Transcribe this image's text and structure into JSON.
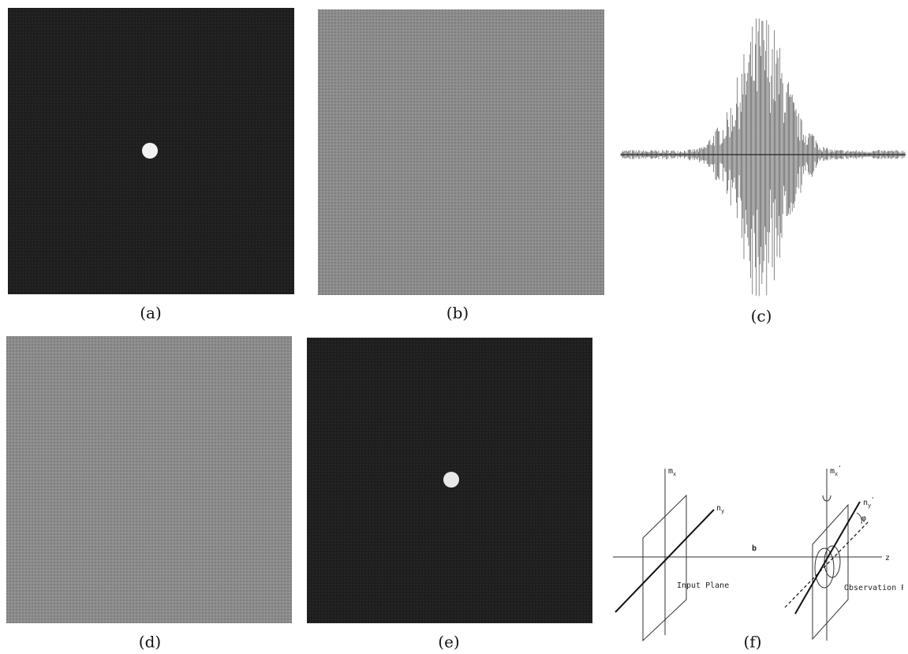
{
  "panels": [
    {
      "label": "(a)"
    },
    {
      "label": "(b)"
    },
    {
      "label": "(c)"
    },
    {
      "label": "(d)"
    },
    {
      "label": "(e)"
    },
    {
      "label": "(f)"
    }
  ],
  "diagram": {
    "input_axis_vertical": {
      "base": "m",
      "sub": "x"
    },
    "input_axis_diagonal": {
      "base": "n",
      "sub": "y"
    },
    "distance": "b",
    "optical_axis": "z",
    "input_plane": "Input Plane",
    "observation_plane": "Observation P",
    "output_axis_vertical": {
      "base": "m",
      "sub": "x",
      "prime": "'"
    },
    "output_axis_diagonal": {
      "base": "n",
      "sub": "y",
      "prime": "'"
    },
    "angle": "φ"
  }
}
